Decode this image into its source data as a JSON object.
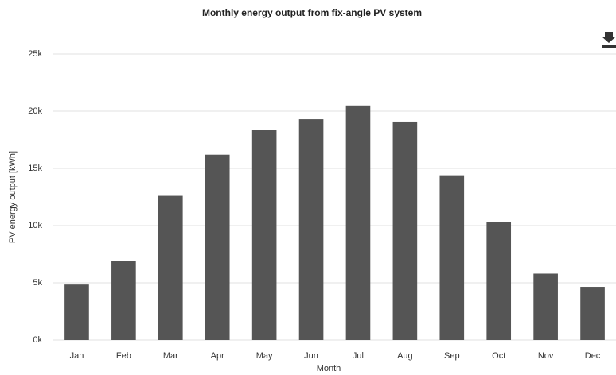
{
  "chart_data": {
    "type": "bar",
    "title": "Monthly energy output from fix-angle PV system",
    "x_label": "Month",
    "y_label": "PV energy output [kWh]",
    "categories": [
      "Jan",
      "Feb",
      "Mar",
      "Apr",
      "May",
      "Jun",
      "Jul",
      "Aug",
      "Sep",
      "Oct",
      "Nov",
      "Dec"
    ],
    "values": [
      4850,
      6900,
      12600,
      16200,
      18400,
      19300,
      20500,
      19100,
      14400,
      10300,
      5800,
      4650
    ],
    "color": "#555555",
    "ylim": [
      0,
      25000
    ],
    "yticks": [
      {
        "value": 0,
        "label": "0k"
      },
      {
        "value": 5000,
        "label": "5k"
      },
      {
        "value": 10000,
        "label": "10k"
      },
      {
        "value": 15000,
        "label": "15k"
      },
      {
        "value": 20000,
        "label": "20k"
      },
      {
        "value": 25000,
        "label": "25k"
      }
    ],
    "grid": true
  }
}
